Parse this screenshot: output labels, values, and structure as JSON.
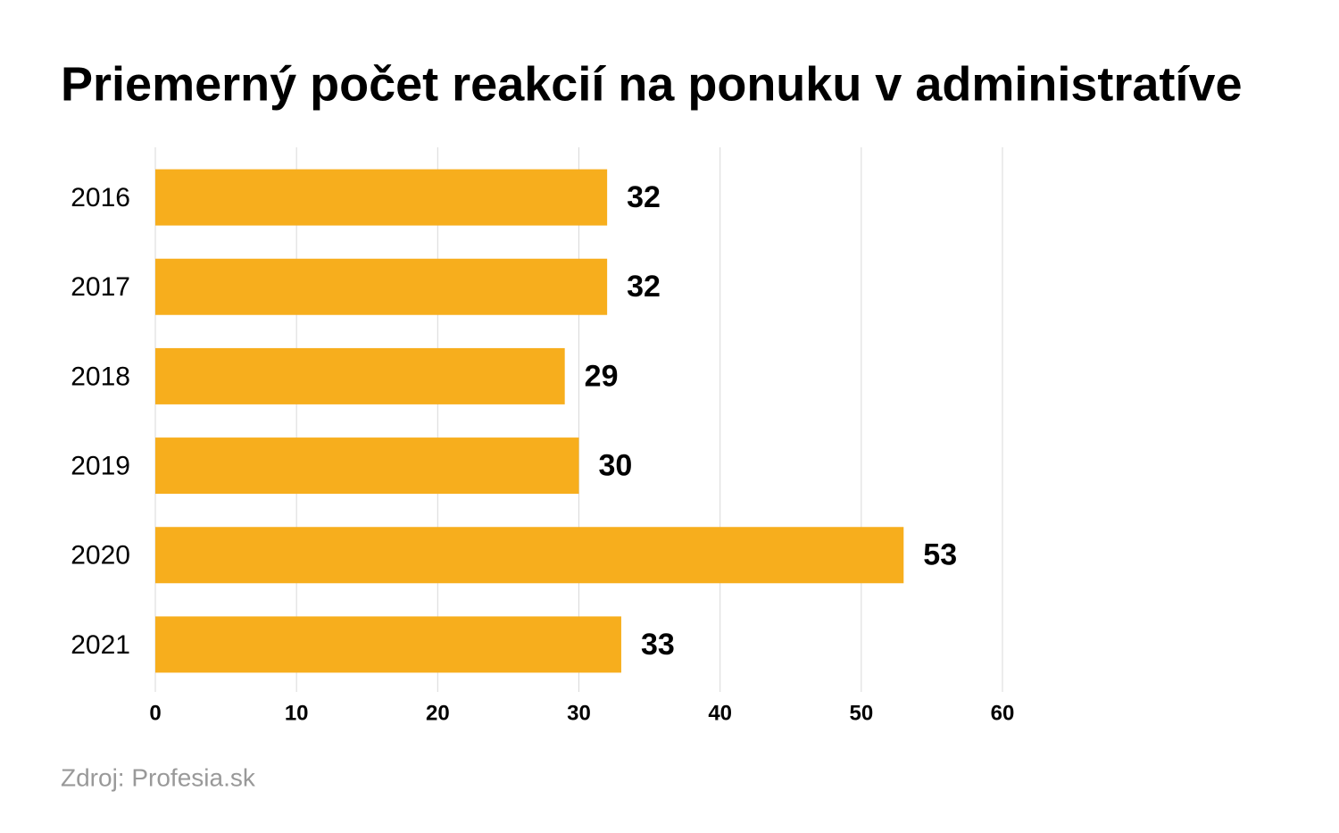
{
  "chart_data": {
    "type": "bar",
    "orientation": "horizontal",
    "title": "Priemerný počet reakcií na ponuku v administratíve",
    "categories": [
      "2016",
      "2017",
      "2018",
      "2019",
      "2020",
      "2021"
    ],
    "values": [
      32,
      32,
      29,
      30,
      53,
      33
    ],
    "color": "#f7ae1d",
    "xlim": [
      0,
      60
    ],
    "xticks": [
      0,
      10,
      20,
      30,
      40,
      50,
      60
    ],
    "grid": true,
    "source": "Zdroj: Profesia.sk"
  }
}
